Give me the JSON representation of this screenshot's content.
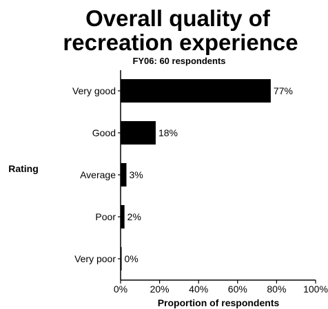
{
  "chart_data": {
    "type": "bar",
    "orientation": "horizontal",
    "title_lines": [
      "Overall quality of",
      "recreation experience"
    ],
    "subtitle": "FY06: 60 respondents",
    "xlabel": "Proportion of respondents",
    "ylabel": "Rating",
    "categories": [
      "Very good",
      "Good",
      "Average",
      "Poor",
      "Very poor"
    ],
    "values": [
      77,
      18,
      3,
      2,
      0
    ],
    "data_labels": [
      "77%",
      "18%",
      "3%",
      "2%",
      "0%"
    ],
    "xlim": [
      0,
      100
    ],
    "xticks": [
      0,
      20,
      40,
      60,
      80,
      100
    ],
    "xtick_labels": [
      "0%",
      "20%",
      "40%",
      "60%",
      "80%",
      "100%"
    ],
    "grid": false,
    "legend": "none",
    "bar_color": "#000000"
  }
}
